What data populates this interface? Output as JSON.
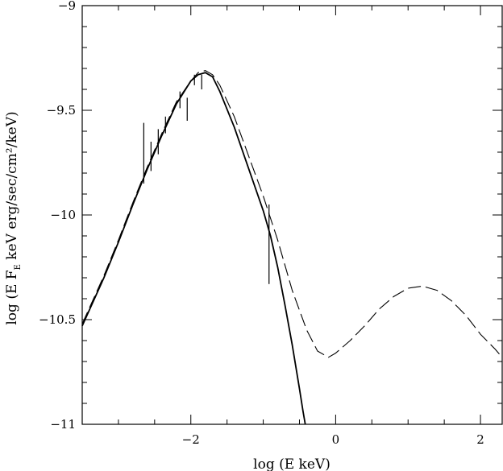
{
  "chart_data": {
    "type": "line",
    "xlabel": "log (E  keV)",
    "ylabel": "log (E F_E  keV erg/sec/cm²/keV)",
    "ylabel_parts": {
      "prefix": "log (E F",
      "subscript": "E",
      "suffix": "  keV erg/sec/cm²/keV)"
    },
    "xlim": [
      -3.5,
      2.3
    ],
    "ylim": [
      -11,
      -9
    ],
    "x_major_ticks": [
      -2,
      0,
      2
    ],
    "x_tick_labels": [
      "−2",
      "0",
      "2"
    ],
    "x_minor_step": 0.5,
    "y_major_ticks": [
      -9,
      -9.5,
      -10,
      -10.5,
      -11
    ],
    "y_tick_labels": [
      "−9",
      "−9.5",
      "−10",
      "−10.5",
      "−11"
    ],
    "y_minor_step": 0.1,
    "grid": false,
    "colors": {
      "line": "#000000",
      "background": "#ffffff"
    },
    "series": [
      {
        "style": "solid",
        "points": [
          [
            -3.5,
            -10.53
          ],
          [
            -3.2,
            -10.3
          ],
          [
            -3.0,
            -10.13
          ],
          [
            -2.8,
            -9.95
          ],
          [
            -2.6,
            -9.78
          ],
          [
            -2.4,
            -9.62
          ],
          [
            -2.2,
            -9.47
          ],
          [
            -2.0,
            -9.36
          ],
          [
            -1.9,
            -9.33
          ],
          [
            -1.8,
            -9.32
          ],
          [
            -1.7,
            -9.34
          ],
          [
            -1.6,
            -9.41
          ],
          [
            -1.4,
            -9.58
          ],
          [
            -1.2,
            -9.78
          ],
          [
            -1.0,
            -9.98
          ],
          [
            -0.9,
            -10.1
          ],
          [
            -0.8,
            -10.25
          ],
          [
            -0.7,
            -10.43
          ],
          [
            -0.6,
            -10.62
          ],
          [
            -0.5,
            -10.83
          ],
          [
            -0.45,
            -10.94
          ],
          [
            -0.42,
            -11.0
          ]
        ]
      },
      {
        "style": "dashed",
        "points": [
          [
            -3.5,
            -10.52
          ],
          [
            -3.2,
            -10.29
          ],
          [
            -3.0,
            -10.12
          ],
          [
            -2.8,
            -9.94
          ],
          [
            -2.6,
            -9.77
          ],
          [
            -2.4,
            -9.61
          ],
          [
            -2.2,
            -9.46
          ],
          [
            -2.0,
            -9.36
          ],
          [
            -1.9,
            -9.32
          ],
          [
            -1.8,
            -9.31
          ],
          [
            -1.7,
            -9.33
          ],
          [
            -1.6,
            -9.38
          ],
          [
            -1.4,
            -9.53
          ],
          [
            -1.2,
            -9.72
          ],
          [
            -1.0,
            -9.91
          ],
          [
            -0.8,
            -10.12
          ],
          [
            -0.6,
            -10.36
          ],
          [
            -0.4,
            -10.55
          ],
          [
            -0.25,
            -10.65
          ],
          [
            -0.1,
            -10.68
          ],
          [
            0.0,
            -10.66
          ],
          [
            0.2,
            -10.6
          ],
          [
            0.4,
            -10.53
          ],
          [
            0.6,
            -10.45
          ],
          [
            0.8,
            -10.39
          ],
          [
            1.0,
            -10.35
          ],
          [
            1.2,
            -10.34
          ],
          [
            1.4,
            -10.36
          ],
          [
            1.6,
            -10.41
          ],
          [
            1.8,
            -10.48
          ],
          [
            2.0,
            -10.57
          ],
          [
            2.2,
            -10.64
          ],
          [
            2.3,
            -10.68
          ]
        ]
      }
    ],
    "error_bars": [
      {
        "x": -2.65,
        "y_low": -9.85,
        "y_high": -9.56
      },
      {
        "x": -2.55,
        "y_low": -9.79,
        "y_high": -9.65
      },
      {
        "x": -2.45,
        "y_low": -9.71,
        "y_high": -9.59
      },
      {
        "x": -2.35,
        "y_low": -9.61,
        "y_high": -9.53
      },
      {
        "x": -2.15,
        "y_low": -9.49,
        "y_high": -9.41
      },
      {
        "x": -2.05,
        "y_low": -9.55,
        "y_high": -9.44
      },
      {
        "x": -1.95,
        "y_low": -9.38,
        "y_high": -9.33
      },
      {
        "x": -1.85,
        "y_low": -9.4,
        "y_high": -9.33
      },
      {
        "x": -0.92,
        "y_low": -10.33,
        "y_high": -9.95
      }
    ]
  }
}
